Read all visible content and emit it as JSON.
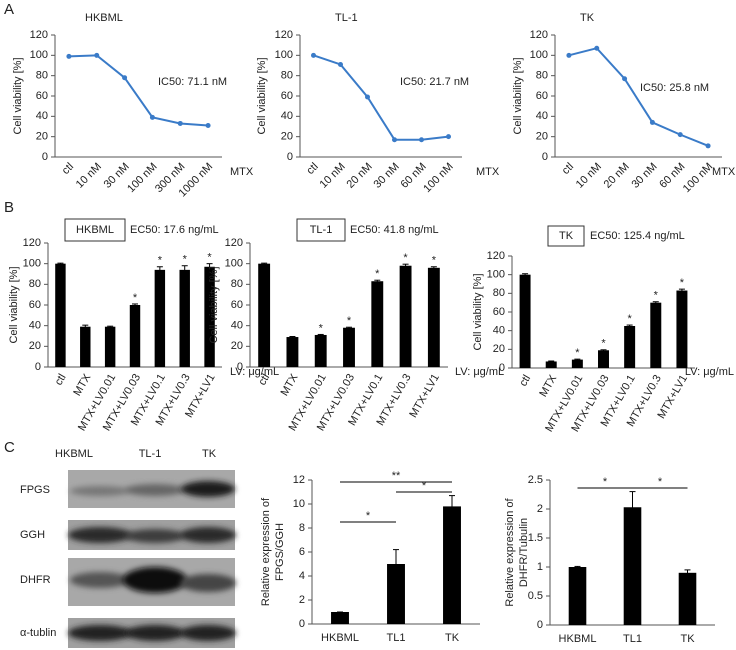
{
  "panel_labels": [
    "A",
    "B",
    "C"
  ],
  "blot": {
    "columns": [
      "HKBML",
      "TL-1",
      "TK"
    ],
    "rows": [
      "FPGS",
      "GGH",
      "DHFR",
      "α-tublin"
    ]
  },
  "chart_data": [
    {
      "type": "line",
      "title": "HKBML",
      "annotation": "IC50: 71.1 nM",
      "x_label": "MTX",
      "y_label": "Cell viability [%]",
      "categories": [
        "ctl",
        "10 nM",
        "30 nM",
        "100 nM",
        "300 nM",
        "1000 nM"
      ],
      "series": [
        {
          "color": "#3a7bc8",
          "values": [
            99,
            100,
            78,
            39,
            33,
            31
          ]
        }
      ],
      "ylim": [
        0,
        120
      ],
      "yticks": [
        0,
        20,
        40,
        60,
        80,
        100,
        120
      ]
    },
    {
      "type": "line",
      "title": "TL-1",
      "annotation": "IC50: 21.7 nM",
      "x_label": "MTX",
      "y_label": "Cell viability [%]",
      "categories": [
        "ctl",
        "10 nM",
        "20 nM",
        "30 nM",
        "60 nM",
        "100 nM"
      ],
      "series": [
        {
          "color": "#3a7bc8",
          "values": [
            100,
            91,
            59,
            17,
            17,
            20
          ]
        }
      ],
      "ylim": [
        0,
        120
      ],
      "yticks": [
        0,
        20,
        40,
        60,
        80,
        100,
        120
      ]
    },
    {
      "type": "line",
      "title": "TK",
      "annotation": "IC50: 25.8 nM",
      "x_label": "MTX",
      "y_label": "Cell viability [%]",
      "categories": [
        "ctl",
        "10 nM",
        "20 nM",
        "30 nM",
        "60 nM",
        "100 nM"
      ],
      "series": [
        {
          "color": "#3a7bc8",
          "values": [
            100,
            107,
            77,
            34,
            22,
            11
          ]
        }
      ],
      "ylim": [
        0,
        120
      ],
      "yticks": [
        0,
        20,
        40,
        60,
        80,
        100,
        120
      ]
    },
    {
      "type": "bar",
      "title": "HKBML",
      "annotation": "EC50: 17.6 ng/mL",
      "x_label": "LV: μg/mL",
      "y_label": "Cell viability [%]",
      "categories": [
        "ctl",
        "MTX",
        "MTX+LV0.01",
        "MTX+LV0.03",
        "MTX+LV0.1",
        "MTX+LV0.3",
        "MTX+LV1"
      ],
      "values": [
        100,
        39,
        39,
        60,
        94,
        94,
        97
      ],
      "errors": [
        0.5,
        1.5,
        0.5,
        1,
        3,
        4,
        3
      ],
      "significance": [
        null,
        null,
        null,
        "*",
        "*",
        "*",
        "*"
      ],
      "color": "#000000",
      "ylim": [
        0,
        120
      ],
      "yticks": [
        0,
        20,
        40,
        60,
        80,
        100,
        120
      ]
    },
    {
      "type": "bar",
      "title": "TL-1",
      "annotation": "EC50: 41.8 ng/mL",
      "x_label": "LV: μg/mL",
      "y_label": "Cell viability [%]",
      "categories": [
        "ctl",
        "MTX",
        "MTX+LV0.01",
        "MTX+LV0.03",
        "MTX+LV0.1",
        "MTX+LV0.3",
        "MTX+LV1"
      ],
      "values": [
        100,
        29,
        31,
        38,
        83,
        98,
        96
      ],
      "errors": [
        0.5,
        0.5,
        0.5,
        0.5,
        1,
        1.5,
        1
      ],
      "significance": [
        null,
        null,
        "*",
        "*",
        "*",
        "*",
        "*"
      ],
      "color": "#000000",
      "ylim": [
        0,
        120
      ],
      "yticks": [
        0,
        20,
        40,
        60,
        80,
        100,
        120
      ]
    },
    {
      "type": "bar",
      "title": "TK",
      "annotation": "EC50: 125.4 ng/mL",
      "x_label": "LV: μg/mL",
      "y_label": "Cell viability [%]",
      "categories": [
        "ctl",
        "MTX",
        "MTX+LV0.01",
        "MTX+LV0.03",
        "MTX+LV0.1",
        "MTX+LV0.3",
        "MTX+LV1"
      ],
      "values": [
        100,
        7,
        9,
        19,
        45,
        70,
        83
      ],
      "errors": [
        1,
        0.5,
        0.5,
        0.5,
        1,
        1,
        1.5
      ],
      "significance": [
        null,
        null,
        "*",
        "*",
        "*",
        "*",
        "*"
      ],
      "color": "#000000",
      "ylim": [
        0,
        120
      ],
      "yticks": [
        0,
        20,
        40,
        60,
        80,
        100,
        120
      ]
    },
    {
      "type": "bar",
      "y_label": [
        "Relative expression of",
        "FPGS/GGH"
      ],
      "categories": [
        "HKBML",
        "TL1",
        "TK"
      ],
      "values": [
        1,
        5,
        9.8
      ],
      "errors": [
        0,
        1.2,
        0.9
      ],
      "color": "#000000",
      "brackets": [
        {
          "between": [
            "HKBML",
            "TL1"
          ],
          "label": "*"
        },
        {
          "between": [
            "HKBML",
            "TK"
          ],
          "label": "**"
        },
        {
          "between": [
            "TL1",
            "TK"
          ],
          "label": "*"
        }
      ],
      "ylim": [
        0,
        12
      ],
      "yticks": [
        0,
        2,
        4,
        6,
        8,
        10,
        12
      ]
    },
    {
      "type": "bar",
      "y_label": [
        "Relative expression of",
        "DHFR/Tubulin"
      ],
      "categories": [
        "HKBML",
        "TL1",
        "TK"
      ],
      "values": [
        1,
        2.03,
        0.9
      ],
      "errors": [
        0.01,
        0.27,
        0.05
      ],
      "color": "#000000",
      "brackets": [
        {
          "between": [
            "HKBML",
            "TL1"
          ],
          "label": "*"
        },
        {
          "between": [
            "TL1",
            "TK"
          ],
          "label": "*"
        }
      ],
      "ylim": [
        0,
        2.5
      ],
      "yticks": [
        0,
        0.5,
        1,
        1.5,
        2,
        2.5
      ]
    }
  ]
}
